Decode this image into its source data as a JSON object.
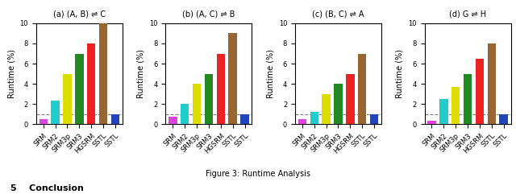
{
  "chart_data": [
    {
      "type": "bar",
      "title": "(a) (A, B) ⇌ C",
      "categories": [
        "SRM",
        "SRM2",
        "SRM3p",
        "SRM3",
        "HGSRM",
        "SSTL",
        "SSTL"
      ],
      "values": [
        0.5,
        2.3,
        5.0,
        7.0,
        8.0,
        10.0,
        1.0
      ],
      "colors": [
        "#dd44dd",
        "#22cccc",
        "#dddd00",
        "#228822",
        "#ee2222",
        "#996633",
        "#2244bb"
      ],
      "y_label": "Runtime (%)",
      "ylim": [
        0,
        10
      ],
      "yticks": [
        0,
        2,
        4,
        6,
        8,
        10
      ],
      "reference_line": 1.0,
      "grid": false
    },
    {
      "type": "bar",
      "title": "(b) (A, C) ⇌ B",
      "categories": [
        "SRM",
        "SRM2",
        "SRM3p",
        "SRM3",
        "HGSRM",
        "SSTL",
        "SSTL"
      ],
      "values": [
        0.7,
        2.0,
        4.0,
        5.0,
        7.0,
        9.0,
        1.0
      ],
      "colors": [
        "#dd44dd",
        "#22cccc",
        "#dddd00",
        "#228822",
        "#ee2222",
        "#996633",
        "#2244bb"
      ],
      "y_label": "Runtime (%)",
      "ylim": [
        0,
        10
      ],
      "yticks": [
        0,
        2,
        4,
        6,
        8,
        10
      ],
      "reference_line": 1.0,
      "grid": false
    },
    {
      "type": "bar",
      "title": "(c) (B, C) ⇌ A",
      "categories": [
        "SRM",
        "SRM2",
        "SRM3p",
        "SRM3",
        "HGSRM",
        "SSTL",
        "SSTL"
      ],
      "values": [
        0.5,
        1.2,
        3.0,
        4.0,
        5.0,
        7.0,
        1.0
      ],
      "colors": [
        "#dd44dd",
        "#22cccc",
        "#dddd00",
        "#228822",
        "#ee2222",
        "#996633",
        "#2244bb"
      ],
      "y_label": "Runtime (%)",
      "ylim": [
        0,
        10
      ],
      "yticks": [
        0,
        2,
        4,
        6,
        8,
        10
      ],
      "reference_line": 1.0,
      "grid": false
    },
    {
      "type": "bar",
      "title": "(d) G ⇌ H",
      "categories": [
        "SRM",
        "SRM2",
        "SRM3p",
        "SRM3",
        "HGSRM",
        "SSTL",
        "SSTL"
      ],
      "values": [
        0.3,
        2.5,
        3.7,
        5.0,
        6.5,
        8.0,
        1.0
      ],
      "colors": [
        "#dd44dd",
        "#22cccc",
        "#dddd00",
        "#228822",
        "#ee2222",
        "#996633",
        "#2244bb"
      ],
      "y_label": "Runtime (%)",
      "ylim": [
        0,
        10
      ],
      "yticks": [
        0,
        2,
        4,
        6,
        8,
        10
      ],
      "reference_line": 1.0,
      "grid": false
    }
  ],
  "caption": "Figure 3: Runtime Analysis",
  "annotations": [
    "5    Conclusion"
  ]
}
